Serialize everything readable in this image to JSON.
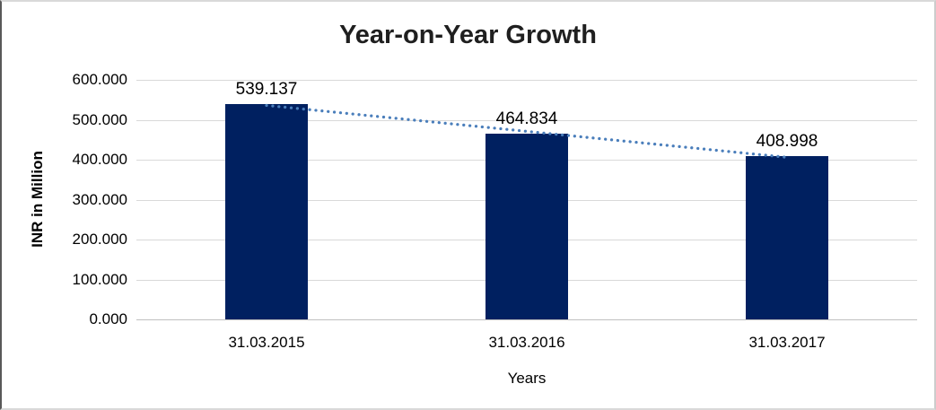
{
  "chart_data": {
    "type": "bar",
    "title": "Year-on-Year Growth",
    "xlabel": "Years",
    "ylabel": "INR in Million",
    "categories": [
      "31.03.2015",
      "31.03.2016",
      "31.03.2017"
    ],
    "values": [
      539.137,
      464.834,
      408.998
    ],
    "data_labels": [
      "539.137",
      "464.834",
      "408.998"
    ],
    "ytick_values": [
      0,
      100,
      200,
      300,
      400,
      500,
      600
    ],
    "ytick_labels": [
      "0.000",
      "100.000",
      "200.000",
      "300.000",
      "400.000",
      "500.000",
      "600.000"
    ],
    "ylim": [
      0,
      600
    ],
    "grid": true,
    "legend": false,
    "trendline": {
      "type": "linear",
      "style": "dotted",
      "color": "#4a7ebb"
    },
    "colors": {
      "bar": "#002060",
      "gridline": "#d9d9d9",
      "axis_line": "#bfbfbf",
      "text": "#000000",
      "title": "#1f1f1f",
      "frame_border": "#d9d9d9",
      "frame_border_left": "#595959"
    }
  }
}
